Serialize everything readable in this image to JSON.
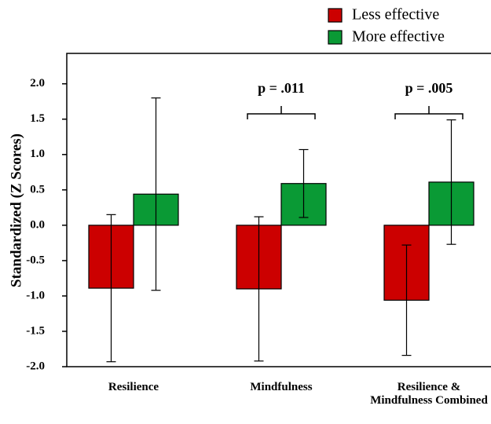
{
  "chart_data": {
    "type": "bar",
    "y_label": "Standardized (Z Scores)",
    "categories": [
      "Resilience",
      "Mindfulness",
      "Resilience & Mindfulness Combined"
    ],
    "series": [
      {
        "name": "Less effective",
        "color": "#cc0000",
        "values": [
          -0.89,
          -0.9,
          -1.06
        ],
        "errors": [
          1.04,
          1.02,
          0.78
        ]
      },
      {
        "name": "More effective",
        "color": "#0a9a35",
        "values": [
          0.44,
          0.59,
          0.61
        ],
        "errors": [
          1.36,
          0.48,
          0.88
        ]
      }
    ],
    "annotations": [
      {
        "text": "p = .011",
        "category": "Mindfulness"
      },
      {
        "text": "p = .005",
        "category": "Resilience & Mindfulness Combined"
      }
    ],
    "ylim": [
      -2,
      2.43
    ],
    "yticks": [
      {
        "value": -2,
        "label": "-2.0"
      },
      {
        "value": -1.5,
        "label": "-1.5"
      },
      {
        "value": -1,
        "label": "-1.0"
      },
      {
        "value": -0.5,
        "label": "-0.5"
      },
      {
        "value": 0,
        "label": "0.0"
      },
      {
        "value": 0.5,
        "label": "0.5"
      },
      {
        "value": 1,
        "label": "1.0"
      },
      {
        "value": 1.5,
        "label": "1.5"
      },
      {
        "value": 2,
        "label": "2.0"
      }
    ],
    "grid": false
  }
}
